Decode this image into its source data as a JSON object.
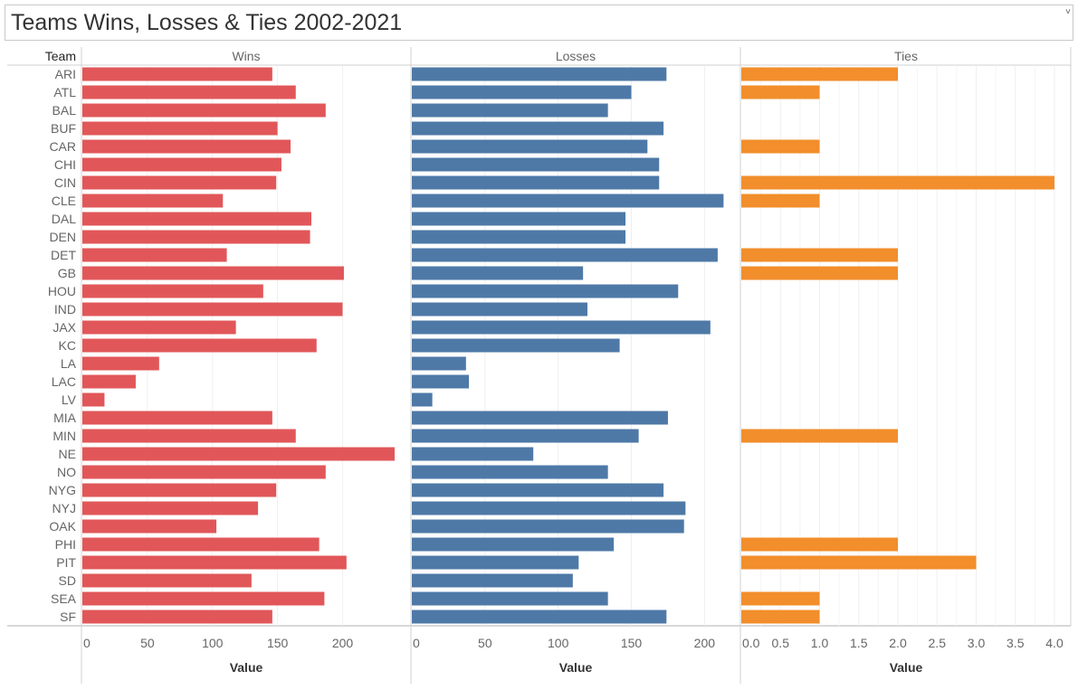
{
  "page": {
    "title": "Teams Wins, Losses & Ties 2002-2021",
    "caret_icon": "dropdown-caret-icon"
  },
  "chart_data": {
    "type": "bar",
    "orientation": "horizontal",
    "title": "Teams Wins, Losses & Ties 2002-2021",
    "row_header": "Team",
    "categories": [
      "ARI",
      "ATL",
      "BAL",
      "BUF",
      "CAR",
      "CHI",
      "CIN",
      "CLE",
      "DAL",
      "DEN",
      "DET",
      "GB",
      "HOU",
      "IND",
      "JAX",
      "KC",
      "LA",
      "LAC",
      "LV",
      "MIA",
      "MIN",
      "NE",
      "NO",
      "NYG",
      "NYJ",
      "OAK",
      "PHI",
      "PIT",
      "SD",
      "SEA",
      "SF"
    ],
    "panels": [
      {
        "name": "Wins",
        "color": "#e15759",
        "xlabel": "Value",
        "xlim": [
          0,
          240
        ],
        "ticks": [
          0,
          50,
          100,
          150,
          200
        ],
        "tick_labels": [
          "0",
          "50",
          "100",
          "150",
          "200"
        ],
        "values": [
          146,
          164,
          187,
          150,
          160,
          153,
          149,
          108,
          176,
          175,
          111,
          201,
          139,
          200,
          118,
          180,
          59,
          41,
          17,
          146,
          164,
          240,
          187,
          149,
          135,
          103,
          182,
          203,
          130,
          186,
          146
        ]
      },
      {
        "name": "Losses",
        "color": "#4e79a7",
        "xlabel": "Value",
        "xlim": [
          0,
          225
        ],
        "ticks": [
          0,
          50,
          100,
          150,
          200
        ],
        "tick_labels": [
          "0",
          "50",
          "100",
          "150",
          "200"
        ],
        "values": [
          174,
          150,
          134,
          172,
          161,
          169,
          169,
          213,
          146,
          146,
          209,
          117,
          182,
          120,
          204,
          142,
          37,
          39,
          14,
          175,
          155,
          83,
          134,
          172,
          187,
          186,
          138,
          114,
          110,
          134,
          174
        ]
      },
      {
        "name": "Ties",
        "color": "#f28e2b",
        "xlabel": "Value",
        "xlim": [
          0,
          4.1
        ],
        "ticks": [
          0.0,
          0.5,
          1.0,
          1.5,
          2.0,
          2.5,
          3.0,
          3.5,
          4.0
        ],
        "tick_labels": [
          "0.0",
          "0.5",
          "1.0",
          "1.5",
          "2.0",
          "2.5",
          "3.0",
          "3.5",
          "4.0"
        ],
        "values": [
          2,
          1,
          0,
          0,
          1,
          0,
          4,
          1,
          0,
          0,
          2,
          2,
          0,
          0,
          0,
          0,
          0,
          0,
          0,
          0,
          2,
          0,
          0,
          0,
          0,
          0,
          2,
          3,
          0,
          1,
          1
        ]
      }
    ],
    "grid": true,
    "legend": "none"
  }
}
